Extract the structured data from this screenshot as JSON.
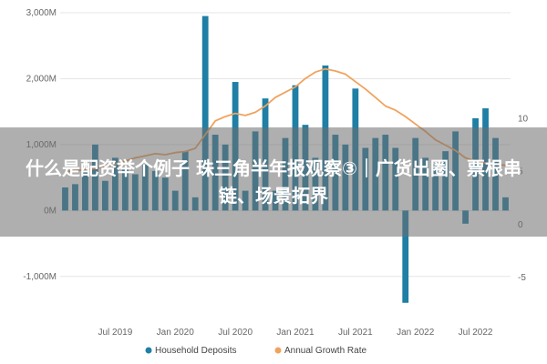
{
  "chart_data": {
    "type": "bar",
    "title": "",
    "xlabel": "",
    "ylabel_left": "",
    "ylabel_right": "",
    "ylim_left": [
      -1500,
      3000
    ],
    "ylim_right": [
      -8,
      20
    ],
    "left_ticks": [
      {
        "value": 3000,
        "label": "3,000M"
      },
      {
        "value": 2000,
        "label": "2,000M"
      },
      {
        "value": 1000,
        "label": "1,000M"
      },
      {
        "value": 0,
        "label": "0M"
      },
      {
        "value": -1000,
        "label": "-1,000M"
      }
    ],
    "right_ticks": [
      {
        "value": 10,
        "label": "10"
      },
      {
        "value": 5,
        "label": "5"
      },
      {
        "value": 0,
        "label": "0"
      },
      {
        "value": -5,
        "label": "-5"
      }
    ],
    "x_ticks": [
      {
        "index": 5,
        "label": "Jul 2019"
      },
      {
        "index": 11,
        "label": "Jan 2020"
      },
      {
        "index": 17,
        "label": "Jul 2020"
      },
      {
        "index": 23,
        "label": "Jan 2021"
      },
      {
        "index": 29,
        "label": "Jul 2021"
      },
      {
        "index": 35,
        "label": "Jan 2022"
      },
      {
        "index": 41,
        "label": "Jul 2022"
      }
    ],
    "series": [
      {
        "name": "Household Deposits",
        "kind": "bar",
        "axis": "left",
        "color": "#1f7fa5",
        "values": [
          350,
          400,
          600,
          1000,
          450,
          800,
          650,
          550,
          700,
          600,
          500,
          300,
          900,
          200,
          2950,
          1150,
          1000,
          1950,
          300,
          1200,
          1700,
          300,
          1100,
          1900,
          1300,
          800,
          2200,
          1150,
          1000,
          1850,
          950,
          1100,
          1150,
          950,
          -1400,
          1100,
          800,
          700,
          900,
          1200,
          -200,
          1400,
          1550,
          1100,
          200
        ]
      },
      {
        "name": "Annual Growth Rate",
        "kind": "line",
        "axis": "right",
        "color": "#f0a35e",
        "values": [
          5.0,
          5.1,
          5.2,
          5.3,
          5.5,
          5.7,
          6.0,
          6.3,
          6.5,
          6.7,
          6.6,
          6.8,
          6.9,
          7.2,
          8.5,
          9.8,
          10.2,
          10.5,
          10.3,
          10.6,
          11.2,
          12.0,
          12.5,
          13.0,
          13.8,
          14.4,
          14.7,
          14.5,
          14.2,
          13.5,
          12.8,
          12.0,
          11.2,
          10.8,
          10.2,
          9.5,
          8.8,
          8.0,
          7.5,
          7.0,
          6.3,
          6.0,
          5.8,
          5.7,
          5.6
        ]
      }
    ],
    "grid": "horizontal",
    "legend": "bottom-center"
  },
  "overlay": {
    "title": "什么是配资举个例子 珠三角半年报观察③｜广货出圈、票根串链、场景拓界"
  }
}
